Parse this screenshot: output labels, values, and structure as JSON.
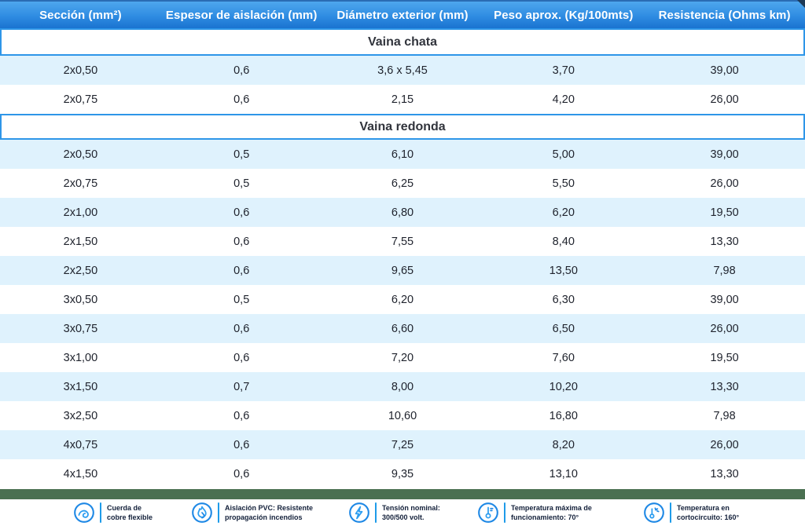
{
  "colors": {
    "header_blue_top": "#4ea7ee",
    "header_blue_bottom": "#1a73d0",
    "header_top_border": "#2a6cb4",
    "section_border_blue": "#2e96e8",
    "row_alt_blue": "#dff2fd",
    "row_text": "#20242e",
    "green_bar": "#4a7051",
    "icon_blue": "#1e88e5",
    "footer_text": "#13203a"
  },
  "chart_data": {
    "type": "table",
    "columns": [
      "Sección (mm²)",
      "Espesor de aislación (mm)",
      "Diámetro exterior (mm)",
      "Peso aprox. (Kg/100mts)",
      "Resistencia (Ohms km)"
    ],
    "sections": [
      {
        "title": "Vaina chata",
        "rows": [
          [
            "2x0,50",
            "0,6",
            "3,6 x 5,45",
            "3,70",
            "39,00"
          ],
          [
            "2x0,75",
            "0,6",
            "2,15",
            "4,20",
            "26,00"
          ]
        ]
      },
      {
        "title": "Vaina redonda",
        "rows": [
          [
            "2x0,50",
            "0,5",
            "6,10",
            "5,00",
            "39,00"
          ],
          [
            "2x0,75",
            "0,5",
            "6,25",
            "5,50",
            "26,00"
          ],
          [
            "2x1,00",
            "0,6",
            "6,80",
            "6,20",
            "19,50"
          ],
          [
            "2x1,50",
            "0,6",
            "7,55",
            "8,40",
            "13,30"
          ],
          [
            "2x2,50",
            "0,6",
            "9,65",
            "13,50",
            "7,98"
          ],
          [
            "3x0,50",
            "0,5",
            "6,20",
            "6,30",
            "39,00"
          ],
          [
            "3x0,75",
            "0,6",
            "6,60",
            "6,50",
            "26,00"
          ],
          [
            "3x1,00",
            "0,6",
            "7,20",
            "7,60",
            "19,50"
          ],
          [
            "3x1,50",
            "0,7",
            "8,00",
            "10,20",
            "13,30"
          ],
          [
            "3x2,50",
            "0,6",
            "10,60",
            "16,80",
            "7,98"
          ],
          [
            "4x0,75",
            "0,6",
            "7,25",
            "8,20",
            "26,00"
          ],
          [
            "4x1,50",
            "0,6",
            "9,35",
            "13,10",
            "13,30"
          ]
        ]
      }
    ]
  },
  "footer": {
    "items": [
      {
        "icon": "flexible-copper-cable-icon",
        "line1": "Cuerda de",
        "line2": "cobre flexible"
      },
      {
        "icon": "flame-icon",
        "line1": "Aislación PVC: Resistente",
        "line2": "propagación incendios"
      },
      {
        "icon": "lightning-icon",
        "line1": "Tensión nominal:",
        "line2": "300/500 volt."
      },
      {
        "icon": "thermometer-icon",
        "line1": "Temperatura máxima de",
        "line2": "funcionamiento: 70°"
      },
      {
        "icon": "short-circuit-temperature-icon",
        "line1": "Temperatura en",
        "line2": "cortocircuito: 160°"
      }
    ]
  }
}
